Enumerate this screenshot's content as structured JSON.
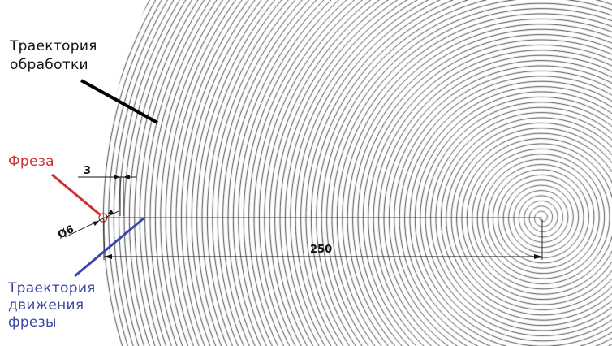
{
  "labels": {
    "toolpath_line1": "Траектория",
    "toolpath_line2": "обработки",
    "cutter": "Фреза",
    "cutter_path_line1": "Траектория",
    "cutter_path_line2": "движения",
    "cutter_path_line3": "фрезы"
  },
  "dimensions": {
    "step": "3",
    "diameter": "Ø6",
    "radius": "250"
  },
  "colors": {
    "toolpath_leader": "#000000",
    "cutter_label": "#d03030",
    "cutter_leader": "#d03030",
    "cutter_path_label": "#3c46a8",
    "cutter_path_leader": "#3c46a8",
    "spiral": "#000000"
  }
}
